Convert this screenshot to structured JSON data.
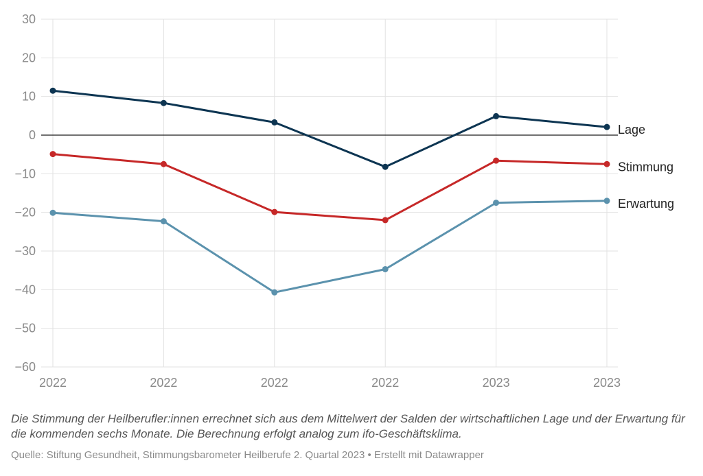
{
  "chart_data": {
    "type": "line",
    "categories": [
      "2022",
      "2022",
      "2022",
      "2022",
      "2023",
      "2023"
    ],
    "ylim": [
      -60,
      30
    ],
    "yticks": [
      30,
      20,
      10,
      0,
      -10,
      -20,
      -30,
      -40,
      -50,
      -60
    ],
    "ytick_labels": [
      "30",
      "20",
      "10",
      "0",
      "−10",
      "−20",
      "−30",
      "−40",
      "−50",
      "−60"
    ],
    "grid": true,
    "zero_line": true,
    "legend": "inline labels at right end of lines",
    "series": [
      {
        "name": "Lage",
        "color": "#0d3552",
        "values": [
          11.5,
          8.3,
          3.3,
          -8.2,
          4.9,
          2.1
        ]
      },
      {
        "name": "Stimmung",
        "color": "#c62828",
        "values": [
          -4.9,
          -7.5,
          -19.9,
          -22.0,
          -6.6,
          -7.5
        ]
      },
      {
        "name": "Erwartung",
        "color": "#5b92ad",
        "values": [
          -20.1,
          -22.3,
          -40.7,
          -34.7,
          -17.5,
          -17.0
        ]
      }
    ]
  },
  "note": "Die Stimmung der Heilberufler:innen errechnet sich aus dem Mittelwert der Salden der wirtschaftlichen Lage und der Erwartung für die kommenden sechs Monate. Die Berechnung erfolgt analog zum ifo-Geschäftsklima.",
  "source": "Quelle: Stiftung Gesundheit, Stimmungsbarometer Heilberufe 2. Quartal 2023 • Erstellt mit Datawrapper"
}
